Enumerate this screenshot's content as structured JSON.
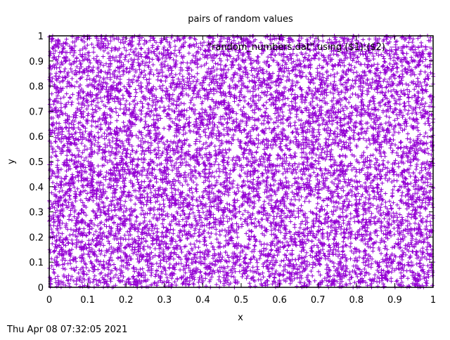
{
  "chart_data": {
    "type": "scatter",
    "title": "pairs of random values",
    "xlabel": "x",
    "ylabel": "y",
    "xlim": [
      0,
      1
    ],
    "ylim": [
      0,
      1
    ],
    "x_ticks": [
      "0",
      "0.1",
      "0.2",
      "0.3",
      "0.4",
      "0.5",
      "0.6",
      "0.7",
      "0.8",
      "0.9",
      "1"
    ],
    "y_ticks": [
      "0",
      "0.1",
      "0.2",
      "0.3",
      "0.4",
      "0.5",
      "0.6",
      "0.7",
      "0.8",
      "0.9",
      "1"
    ],
    "grid": false,
    "legend_position": "top-right",
    "marker": "+",
    "series": [
      {
        "name": "\"random_numbers.dat\" using ($1):($2)",
        "color": "#9400d3",
        "distribution": "uniform",
        "x": [
          0.013,
          0.087,
          0.152,
          0.231,
          0.298,
          0.344,
          0.417,
          0.482,
          0.559,
          0.613,
          0.688,
          0.742,
          0.815,
          0.879,
          0.936,
          0.991,
          0.046,
          0.124,
          0.271,
          0.392,
          0.527,
          0.651,
          0.773,
          0.905
        ],
        "y": [
          0.742,
          0.118,
          0.563,
          0.907,
          0.331,
          0.682,
          0.054,
          0.476,
          0.819,
          0.239,
          0.615,
          0.972,
          0.402,
          0.097,
          0.753,
          0.288,
          0.934,
          0.371,
          0.645,
          0.182,
          0.527,
          0.861,
          0.013,
          0.448
        ]
      }
    ]
  },
  "footer": {
    "timestamp": "Thu Apr 08 07:32:05 2021"
  }
}
